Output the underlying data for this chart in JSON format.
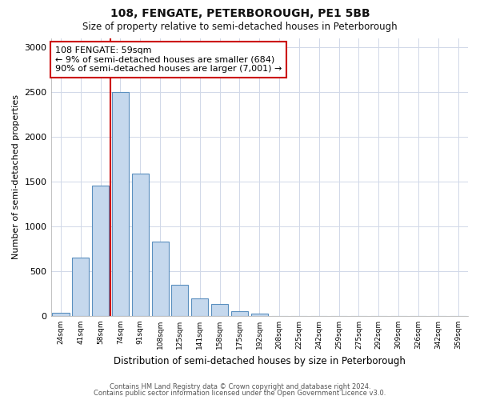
{
  "title1": "108, FENGATE, PETERBOROUGH, PE1 5BB",
  "title2": "Size of property relative to semi-detached houses in Peterborough",
  "xlabel": "Distribution of semi-detached houses by size in Peterborough",
  "ylabel": "Number of semi-detached properties",
  "bar_color": "#c5d8ed",
  "bar_edgecolor": "#5a8fbf",
  "vline_color": "#cc0000",
  "vline_x_index": 2,
  "annotation_text": "108 FENGATE: 59sqm\n← 9% of semi-detached houses are smaller (684)\n90% of semi-detached houses are larger (7,001) →",
  "annotation_box_edgecolor": "#cc0000",
  "annotation_fontsize": 8,
  "categories": [
    "24sqm",
    "41sqm",
    "58sqm",
    "74sqm",
    "91sqm",
    "108sqm",
    "125sqm",
    "141sqm",
    "158sqm",
    "175sqm",
    "192sqm",
    "208sqm",
    "225sqm",
    "242sqm",
    "259sqm",
    "275sqm",
    "292sqm",
    "309sqm",
    "326sqm",
    "342sqm",
    "359sqm"
  ],
  "values": [
    35,
    650,
    1450,
    2500,
    1590,
    830,
    350,
    200,
    130,
    50,
    30,
    0,
    0,
    0,
    0,
    0,
    0,
    0,
    0,
    0,
    0
  ],
  "ylim": [
    0,
    3100
  ],
  "yticks": [
    0,
    500,
    1000,
    1500,
    2000,
    2500,
    3000
  ],
  "footer1": "Contains HM Land Registry data © Crown copyright and database right 2024.",
  "footer2": "Contains public sector information licensed under the Open Government Licence v3.0.",
  "background_color": "#ffffff",
  "plot_background": "#ffffff",
  "grid_color": "#d0d8e8"
}
